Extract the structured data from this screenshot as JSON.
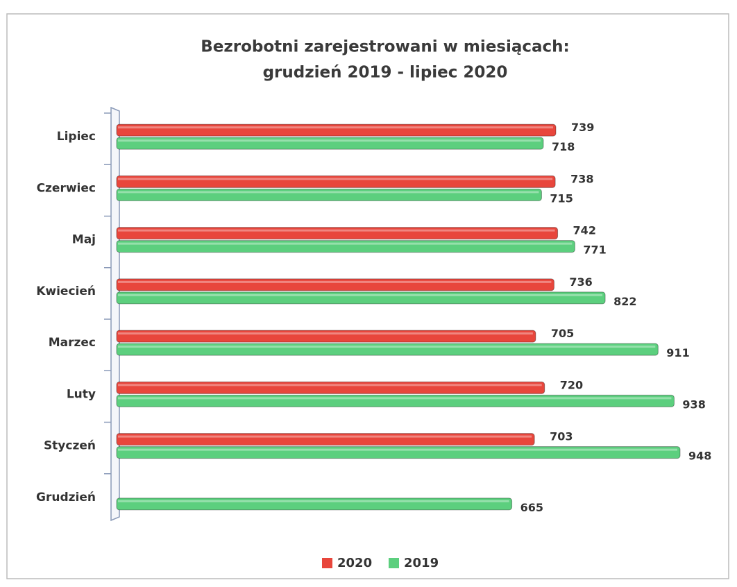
{
  "chart_data": {
    "type": "bar",
    "orientation": "horizontal",
    "title": [
      "Bezrobotni zarejestrowani w miesiącach:",
      "grudzień 2019 - lipiec 2020"
    ],
    "categories": [
      "Lipiec",
      "Czerwiec",
      "Maj",
      "Kwiecień",
      "Marzec",
      "Luty",
      "Styczeń",
      "Grudzień"
    ],
    "series": [
      {
        "name": "2020",
        "color": "#e8463c",
        "values": [
          739,
          738,
          742,
          736,
          705,
          720,
          703,
          null
        ]
      },
      {
        "name": "2019",
        "color": "#5ccf7e",
        "values": [
          718,
          715,
          771,
          822,
          911,
          938,
          948,
          665
        ]
      }
    ]
  }
}
